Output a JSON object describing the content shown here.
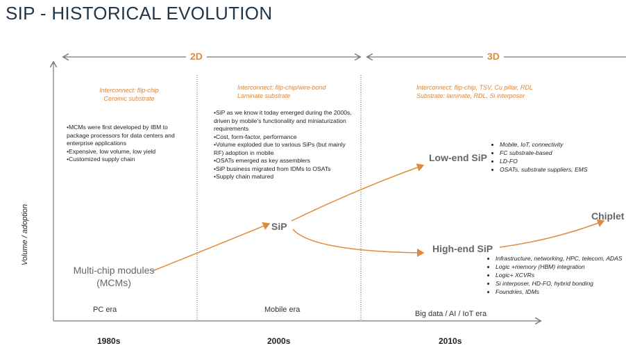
{
  "title": "SIP - HISTORICAL EVOLUTION",
  "y_axis_label": "Volume / adoption",
  "phases": [
    "2D",
    "3D"
  ],
  "interconnect": [
    [
      "Interconnect: flip-chip",
      "Ceromic substrate"
    ],
    [
      "Interconnect: flip-chip/wire-bond",
      "Laminate substrate"
    ],
    [
      "Interconnect: flip-chip, TSV, Cu pillar, RDL",
      "Substrate: laminate, RDL, Si interposer"
    ]
  ],
  "notes": [
    [
      "MCMs were first developed by IBM to package processors for data centers and enterprise applications",
      "Expensive, low volume, low yield",
      "Customized supply chain"
    ],
    [
      "SiP as we know it today emerged during the 2000s, driven by mobile's functionality and miniaturization requirements",
      "Cost, form-factor, performance",
      "Volume exploded due to various SiPs (but mainly RF) adoption in mobile",
      "OSATs emerged as key assemblers",
      "SiP business migrated from IDMs to OSATs",
      "Supply chain matured"
    ]
  ],
  "nodes": {
    "mcm": "Multi-chip modules (MCMs)",
    "sip": "SiP",
    "low_end": "Low-end SiP",
    "high_end": "High-end SiP",
    "chiplet": "Chiplet"
  },
  "low_end_bullets": [
    "Mobile, IoT, connectivity",
    "FC substrate-based",
    "LD-FO",
    "OSATs, substrate suppliers, EMS"
  ],
  "high_end_bullets": [
    "Infrastructure, networking, HPC, telecom, ADAS",
    "Logic +memory (HBM) integration",
    "Logic+ XCVRs",
    "Si interposer, HD-FO, hybrid bonding",
    "Foundries, IDMs"
  ],
  "eras": [
    "PC era",
    "Mobile era",
    "Big data / AI / IoT era"
  ],
  "decades": [
    "1980s",
    "2000s",
    "2010s"
  ]
}
